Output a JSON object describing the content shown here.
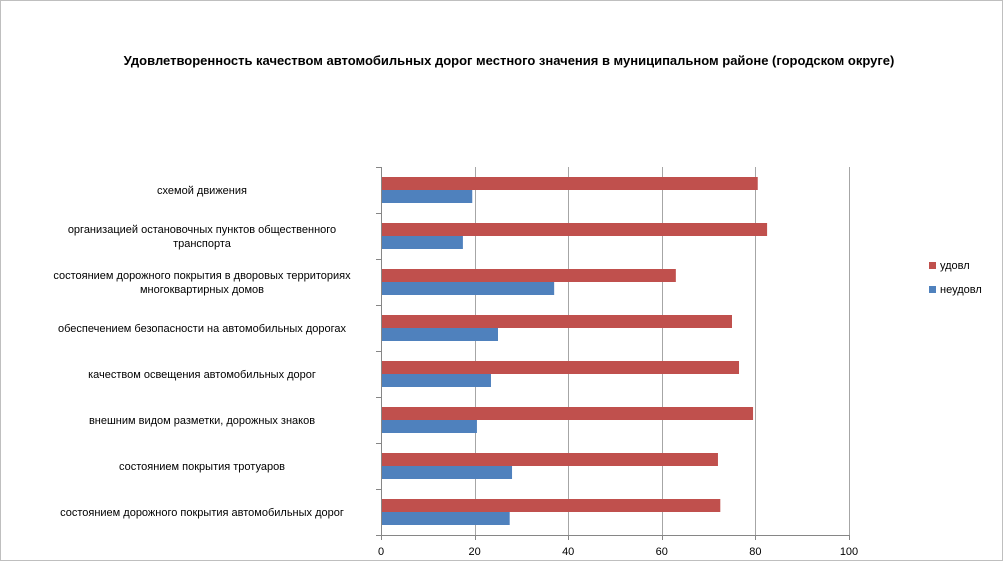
{
  "chart_data": {
    "type": "bar",
    "orientation": "horizontal",
    "title": "Удовлетворенность качеством автомобильных дорог местного значения в муниципальном районе (городском округе)",
    "categories": [
      [
        "схемой движения"
      ],
      [
        "организацией остановочных пунктов общественного",
        "транспорта"
      ],
      [
        "состоянием дорожного покрытия в дворовых территориях",
        "многоквартирных домов"
      ],
      [
        "обеспечением  безопасности на автомобильных дорогах"
      ],
      [
        "качеством освещения  автомобильных дорог"
      ],
      [
        "внешним  видом разметки, дорожных знаков"
      ],
      [
        "состоянием покрытия тротуаров"
      ],
      [
        "состоянием дорожного покрытия автомобильных дорог"
      ]
    ],
    "series": [
      {
        "name": "удовл",
        "color": "#c0504d",
        "values": [
          80.5,
          82.5,
          63,
          75,
          76.5,
          79.5,
          72,
          72.5
        ]
      },
      {
        "name": "неудовл",
        "color": "#4f81bd",
        "values": [
          19.5,
          17.5,
          37,
          25,
          23.5,
          20.5,
          28,
          27.5
        ]
      }
    ],
    "xlim": [
      0,
      100
    ],
    "xticks": [
      0,
      20,
      40,
      60,
      80,
      100
    ],
    "grid": true,
    "legend": "right"
  }
}
